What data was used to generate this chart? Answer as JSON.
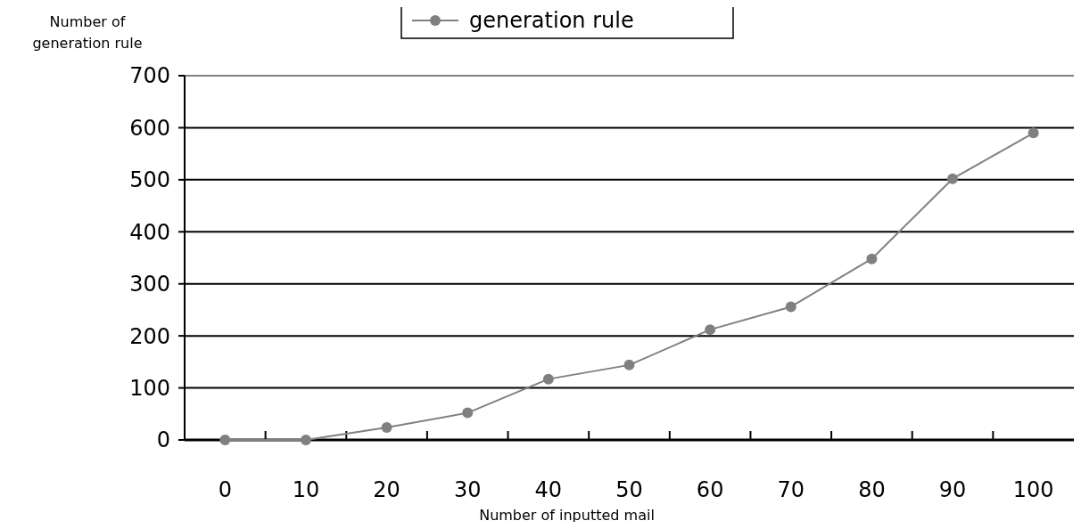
{
  "chart_data": {
    "type": "line",
    "xlabel": "Number of inputted mail",
    "ylabel": "Number of generation rule",
    "categories": [
      "0",
      "10",
      "20",
      "30",
      "40",
      "50",
      "60",
      "70",
      "80",
      "90",
      "100"
    ],
    "series": [
      {
        "name": "generation rule",
        "color": "#808080",
        "values": [
          0,
          0,
          24,
          52,
          117,
          144,
          212,
          256,
          348,
          502,
          590
        ]
      }
    ],
    "ylim": [
      0,
      700
    ],
    "yticks": [
      0,
      100,
      200,
      300,
      400,
      500,
      600,
      700
    ],
    "grid": "y",
    "legend": "top",
    "marker": "circle",
    "line_style": "solid"
  }
}
